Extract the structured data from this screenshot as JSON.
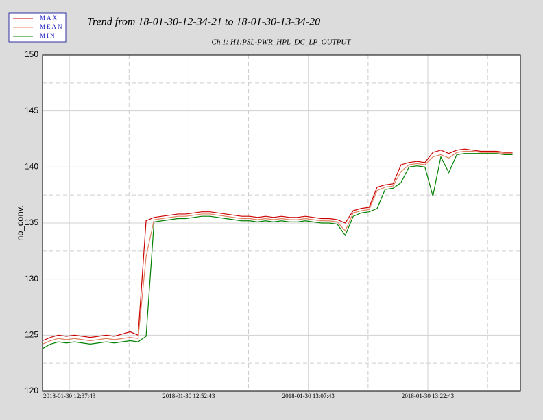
{
  "chart_data": {
    "type": "line",
    "title": "Trend from 18-01-30-12-34-21 to 18-01-30-13-34-20",
    "subtitle": "Ch 1: H1:PSL-PWR_HPL_DC_LP_OUTPUT",
    "ylabel": "no_conv.",
    "x": [
      "2018-01-30 12:34:21",
      "2018-01-30 12:35:21",
      "2018-01-30 12:36:21",
      "2018-01-30 12:37:21",
      "2018-01-30 12:38:21",
      "2018-01-30 12:39:21",
      "2018-01-30 12:40:21",
      "2018-01-30 12:41:21",
      "2018-01-30 12:42:21",
      "2018-01-30 12:43:21",
      "2018-01-30 12:44:21",
      "2018-01-30 12:45:21",
      "2018-01-30 12:46:21",
      "2018-01-30 12:47:21",
      "2018-01-30 12:48:21",
      "2018-01-30 12:49:21",
      "2018-01-30 12:50:21",
      "2018-01-30 12:51:21",
      "2018-01-30 12:52:21",
      "2018-01-30 12:53:21",
      "2018-01-30 12:54:21",
      "2018-01-30 12:55:21",
      "2018-01-30 12:56:21",
      "2018-01-30 12:57:21",
      "2018-01-30 12:58:21",
      "2018-01-30 12:59:21",
      "2018-01-30 13:00:21",
      "2018-01-30 13:01:21",
      "2018-01-30 13:02:21",
      "2018-01-30 13:03:21",
      "2018-01-30 13:04:21",
      "2018-01-30 13:05:21",
      "2018-01-30 13:06:21",
      "2018-01-30 13:07:21",
      "2018-01-30 13:08:21",
      "2018-01-30 13:09:21",
      "2018-01-30 13:10:21",
      "2018-01-30 13:11:21",
      "2018-01-30 13:12:21",
      "2018-01-30 13:13:21",
      "2018-01-30 13:14:21",
      "2018-01-30 13:15:21",
      "2018-01-30 13:16:21",
      "2018-01-30 13:17:21",
      "2018-01-30 13:18:21",
      "2018-01-30 13:19:21",
      "2018-01-30 13:20:21",
      "2018-01-30 13:21:21",
      "2018-01-30 13:22:21",
      "2018-01-30 13:23:21",
      "2018-01-30 13:24:21",
      "2018-01-30 13:25:21",
      "2018-01-30 13:26:21",
      "2018-01-30 13:27:21",
      "2018-01-30 13:28:21",
      "2018-01-30 13:29:21",
      "2018-01-30 13:30:21",
      "2018-01-30 13:31:21",
      "2018-01-30 13:32:21",
      "2018-01-30 13:33:21"
    ],
    "series": [
      {
        "name": "MAX",
        "color": "#cc0000",
        "values": [
          124.5,
          124.8,
          125.0,
          124.9,
          125.0,
          124.9,
          124.8,
          124.9,
          125.0,
          124.9,
          125.1,
          125.3,
          125.0,
          135.2,
          135.5,
          135.6,
          135.7,
          135.8,
          135.8,
          135.9,
          136.0,
          136.0,
          135.9,
          135.8,
          135.7,
          135.6,
          135.6,
          135.5,
          135.6,
          135.5,
          135.6,
          135.5,
          135.5,
          135.6,
          135.5,
          135.4,
          135.4,
          135.3,
          135.0,
          136.1,
          136.3,
          136.4,
          138.2,
          138.4,
          138.5,
          140.2,
          140.4,
          140.5,
          140.4,
          141.3,
          141.5,
          141.2,
          141.5,
          141.6,
          141.5,
          141.4,
          141.4,
          141.4,
          141.3,
          141.3
        ]
      },
      {
        "name": "MEAN",
        "color": "#e08060",
        "values": [
          124.2,
          124.5,
          124.7,
          124.6,
          124.7,
          124.6,
          124.5,
          124.6,
          124.7,
          124.6,
          124.7,
          124.8,
          124.7,
          132.0,
          135.3,
          135.4,
          135.5,
          135.6,
          135.6,
          135.7,
          135.8,
          135.8,
          135.7,
          135.6,
          135.5,
          135.4,
          135.4,
          135.3,
          135.4,
          135.3,
          135.4,
          135.3,
          135.3,
          135.4,
          135.3,
          135.2,
          135.2,
          135.1,
          134.3,
          135.9,
          136.1,
          136.2,
          137.9,
          138.2,
          138.3,
          139.6,
          140.2,
          140.3,
          140.2,
          140.9,
          141.1,
          140.8,
          141.3,
          141.4,
          141.4,
          141.3,
          141.3,
          141.3,
          141.2,
          141.2
        ]
      },
      {
        "name": "MIN",
        "color": "#008000",
        "values": [
          123.8,
          124.2,
          124.4,
          124.3,
          124.4,
          124.3,
          124.2,
          124.3,
          124.4,
          124.3,
          124.4,
          124.5,
          124.4,
          124.9,
          135.1,
          135.2,
          135.3,
          135.4,
          135.4,
          135.5,
          135.6,
          135.6,
          135.5,
          135.4,
          135.3,
          135.2,
          135.2,
          135.1,
          135.2,
          135.1,
          135.2,
          135.1,
          135.1,
          135.2,
          135.1,
          135.0,
          135.0,
          134.9,
          133.9,
          135.6,
          135.9,
          136.0,
          136.3,
          138.0,
          138.1,
          138.6,
          140.0,
          140.1,
          140.0,
          137.4,
          140.9,
          139.5,
          141.1,
          141.2,
          141.2,
          141.2,
          141.2,
          141.2,
          141.1,
          141.1
        ]
      }
    ],
    "xlim": [
      "2018-01-30 12:34:21",
      "2018-01-30 13:34:20"
    ],
    "xticks": [
      "2018-01-30 12:37:43",
      "2018-01-30 12:52:43",
      "2018-01-30 13:07:43",
      "2018-01-30 13:22:43"
    ],
    "xminor": [
      "2018-01-30 12:45:13",
      "2018-01-30 13:00:13",
      "2018-01-30 13:15:13",
      "2018-01-30 13:30:13"
    ],
    "ylim": [
      120,
      150
    ],
    "yticks": [
      120,
      125,
      130,
      135,
      140,
      145,
      150
    ],
    "yminor": [
      122.5,
      127.5,
      132.5,
      137.5,
      142.5,
      147.5
    ],
    "grid": true
  }
}
